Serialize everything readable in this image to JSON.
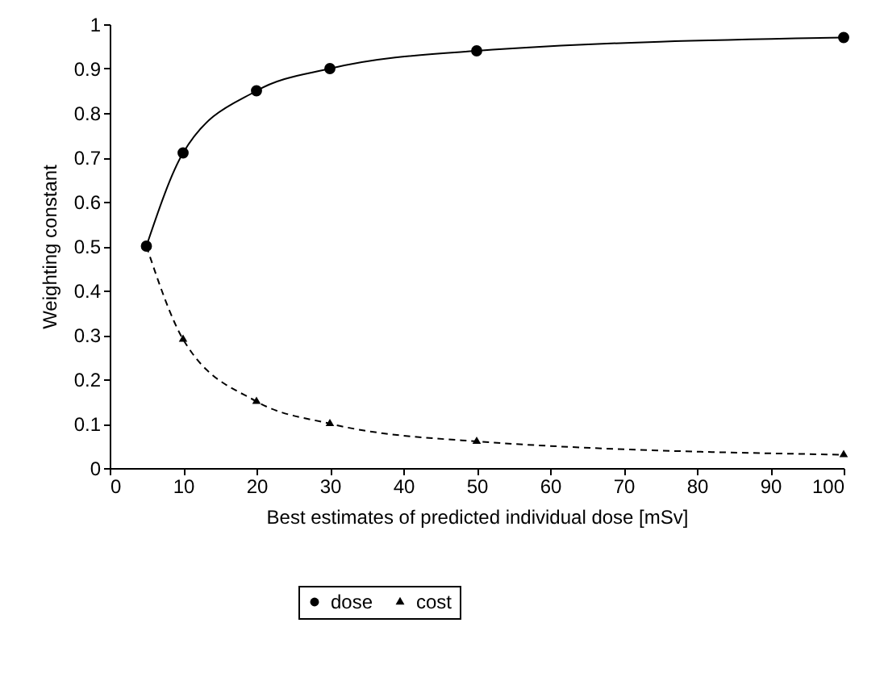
{
  "chart_data": {
    "type": "line",
    "xlabel": "Best estimates of predicted individual dose [mSv]",
    "ylabel": "Weighting constant",
    "x": [
      5,
      10,
      20,
      30,
      50,
      100
    ],
    "series": [
      {
        "name": "dose",
        "color": "#000000",
        "marker": "circle",
        "line_style": "solid",
        "values": [
          0.5,
          0.71,
          0.85,
          0.9,
          0.94,
          0.97
        ]
      },
      {
        "name": "cost",
        "color": "#000000",
        "marker": "triangle",
        "line_style": "dashed",
        "values": [
          0.5,
          0.29,
          0.15,
          0.1,
          0.06,
          0.03
        ]
      }
    ],
    "xlim": [
      0,
      100
    ],
    "xticks": [
      0,
      10,
      20,
      30,
      40,
      50,
      60,
      70,
      80,
      90,
      100
    ],
    "ylim": [
      0,
      1
    ],
    "yticks": [
      0,
      0.1,
      0.2,
      0.3,
      0.4,
      0.5,
      0.6,
      0.7,
      0.8,
      0.9,
      1
    ],
    "grid": false,
    "legend": "bottom"
  }
}
